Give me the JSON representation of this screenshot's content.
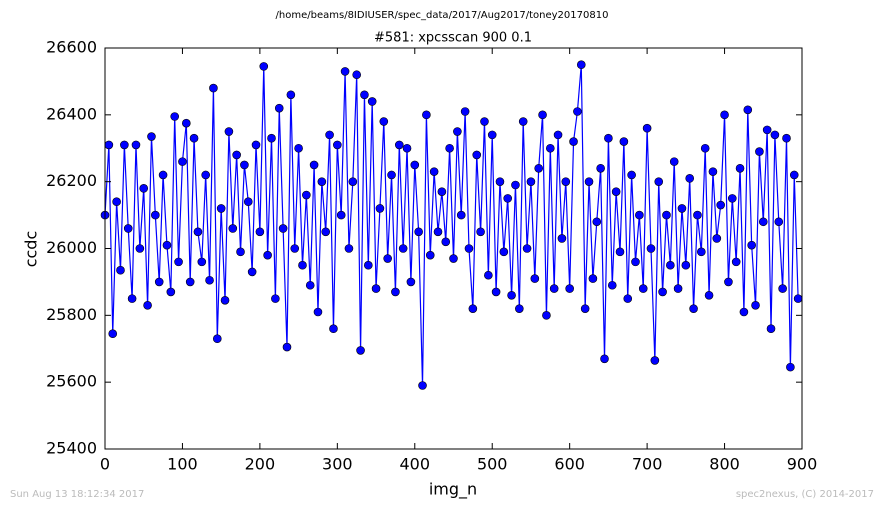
{
  "chart_data": {
    "type": "line",
    "suptitle": "/home/beams/8IDIUSER/spec_data/2017/Aug2017/toney20170810",
    "title": "#581: xpcsscan 900 0.1",
    "xlabel": "img_n",
    "ylabel": "ccdc",
    "footer_left": "Sun Aug 13 18:12:34 2017",
    "footer_right": "spec2nexus, (C) 2014-2017",
    "xlim": [
      0,
      900
    ],
    "ylim": [
      25400,
      26600
    ],
    "xticks": [
      0,
      100,
      200,
      300,
      400,
      500,
      600,
      700,
      800,
      900
    ],
    "yticks": [
      25400,
      25600,
      25800,
      26000,
      26200,
      26400,
      26600
    ],
    "grid": false,
    "x": [
      0,
      5,
      10,
      15,
      20,
      25,
      30,
      35,
      40,
      45,
      50,
      55,
      60,
      65,
      70,
      75,
      80,
      85,
      90,
      95,
      100,
      105,
      110,
      115,
      120,
      125,
      130,
      135,
      140,
      145,
      150,
      155,
      160,
      165,
      170,
      175,
      180,
      185,
      190,
      195,
      200,
      205,
      210,
      215,
      220,
      225,
      230,
      235,
      240,
      245,
      250,
      255,
      260,
      265,
      270,
      275,
      280,
      285,
      290,
      295,
      300,
      305,
      310,
      315,
      320,
      325,
      330,
      335,
      340,
      345,
      350,
      355,
      360,
      365,
      370,
      375,
      380,
      385,
      390,
      395,
      400,
      405,
      410,
      415,
      420,
      425,
      430,
      435,
      440,
      445,
      450,
      455,
      460,
      465,
      470,
      475,
      480,
      485,
      490,
      495,
      500,
      505,
      510,
      515,
      520,
      525,
      530,
      535,
      540,
      545,
      550,
      555,
      560,
      565,
      570,
      575,
      580,
      585,
      590,
      595,
      600,
      605,
      610,
      615,
      620,
      625,
      630,
      635,
      640,
      645,
      650,
      655,
      660,
      665,
      670,
      675,
      680,
      685,
      690,
      695,
      700,
      705,
      710,
      715,
      720,
      725,
      730,
      735,
      740,
      745,
      750,
      755,
      760,
      765,
      770,
      775,
      780,
      785,
      790,
      795,
      800,
      805,
      810,
      815,
      820,
      825,
      830,
      835,
      840,
      845,
      850,
      855,
      860,
      865,
      870,
      875,
      880,
      885,
      890,
      895
    ],
    "series": [
      {
        "name": "ccdc",
        "color": "#0000ff",
        "values": [
          26100,
          26310,
          25745,
          26140,
          25935,
          26310,
          26060,
          25850,
          26310,
          26000,
          26180,
          25830,
          26335,
          26100,
          25900,
          26220,
          26010,
          25870,
          26395,
          25960,
          26260,
          26375,
          25900,
          26330,
          26050,
          25960,
          26220,
          25905,
          26480,
          25730,
          26120,
          25845,
          26350,
          26060,
          26280,
          25990,
          26250,
          26140,
          25930,
          26310,
          26050,
          26545,
          25980,
          26330,
          25850,
          26420,
          26060,
          25705,
          26460,
          26000,
          26300,
          25950,
          26160,
          25890,
          26250,
          25810,
          26200,
          26050,
          26340,
          25760,
          26310,
          26100,
          26530,
          26000,
          26200,
          26520,
          25695,
          26460,
          25950,
          26440,
          25880,
          26120,
          26380,
          25970,
          26220,
          25870,
          26310,
          26000,
          26300,
          25900,
          26250,
          26050,
          25590,
          26400,
          25980,
          26230,
          26050,
          26170,
          26020,
          26300,
          25970,
          26350,
          26100,
          26410,
          26000,
          25820,
          26280,
          26050,
          26380,
          25920,
          26340,
          25870,
          26200,
          25990,
          26150,
          25860,
          26190,
          25820,
          26380,
          26000,
          26200,
          25910,
          26240,
          26400,
          25800,
          26300,
          25880,
          26340,
          26030,
          26200,
          25880,
          26320,
          26410,
          26550,
          25820,
          26200,
          25910,
          26080,
          26240,
          25670,
          26330,
          25890,
          26170,
          25990,
          26320,
          25850,
          26220,
          25960,
          26100,
          25880,
          26360,
          26000,
          25665,
          26200,
          25870,
          26100,
          25950,
          26260,
          25880,
          26120,
          25950,
          26210,
          25820,
          26100,
          25990,
          26300,
          25860,
          26230,
          26030,
          26130,
          26400,
          25900,
          26150,
          25960,
          26240,
          25810,
          26415,
          26010,
          25830,
          26290,
          26080,
          26355,
          25760,
          26340,
          26080,
          25880,
          26330,
          25645,
          26220,
          25850
        ]
      }
    ]
  }
}
